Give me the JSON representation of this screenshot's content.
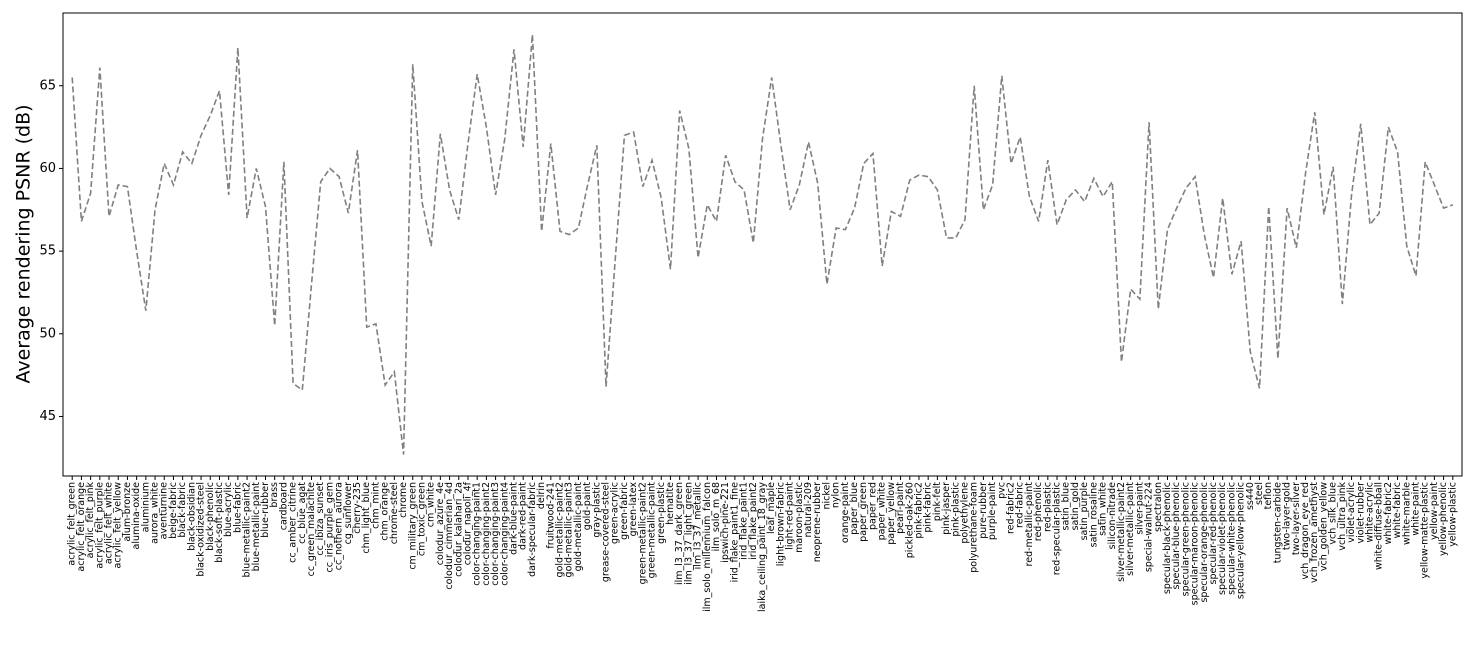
{
  "chart_data": {
    "type": "line",
    "ylabel": "Average rendering PSNR (dB)",
    "categories": [
      "acrylic_felt_green",
      "acrylic_felt_orange",
      "acrylic_felt_pink",
      "acrylic_felt_purple",
      "acrylic_felt_white",
      "acrylic_felt_yellow",
      "alum-bronze",
      "alumina-oxide",
      "aluminium",
      "aurora_white",
      "aventurnine",
      "beige-fabric",
      "black-fabric",
      "black-obsidian",
      "black-oxidized-steel",
      "black-phenolic",
      "black-soft-plastic",
      "blue-acrylic",
      "blue-fabric",
      "blue-metallic-paint2",
      "blue-metallic-paint",
      "blue-rubber",
      "brass",
      "cardboard",
      "cc_amber_citrine",
      "cc_blue_agat",
      "cc_green_malachite",
      "cc_ibiza_sunset",
      "cc_iris_purple_gem",
      "cc_nothern_aurora",
      "cg_sunflower",
      "cherry-235",
      "chm_light_blue",
      "chm_mint",
      "chm_orange",
      "chrome-steel",
      "chrome",
      "cm_military_green",
      "cm_toxic_green",
      "cm_white",
      "colodur_azure_4e",
      "colodur_cimmerian_4d",
      "colodur_kalahari_2a",
      "colodur_napoli_4f",
      "color-changing-paint1",
      "color-changing-paint2",
      "color-changing-paint3",
      "color-changing-paint4",
      "dark-blue-paint",
      "dark-red-paint",
      "dark-specular-fabric",
      "delrin",
      "fruitwood-241",
      "gold-metallic-paint2",
      "gold-metallic-paint3",
      "gold-metallic-paint",
      "gold-paint",
      "gray-plastic",
      "grease-covered-steel",
      "green-acrylic",
      "green-fabric",
      "green-latex",
      "green-metallic-paint2",
      "green-metallic-paint",
      "green-plastic",
      "hematite",
      "ilm_l3_37_dark_green",
      "ilm_l3_37_light_green",
      "ilm_l3_37_metallic",
      "ilm_solo_millennium_falcon",
      "ilm_solo_m_68",
      "ipswich-pine-221",
      "irid_flake_paint1_fine",
      "irid_flake_paint1",
      "irid_flake_paint2",
      "laika_ceiling_paint_18_gray",
      "leaf_maple",
      "light-brown-fabric",
      "light-red-paint",
      "maroon-plastic",
      "natural-209",
      "neoprene-rubber",
      "nickel",
      "nylon",
      "orange-paint",
      "paper_blue",
      "paper_green",
      "paper_red",
      "paper_white",
      "paper_yellow",
      "pearl-paint",
      "pickled-oak-260",
      "pink-fabric2",
      "pink-fabric",
      "pink-felt",
      "pink-jasper",
      "pink-plastic",
      "polyethylene",
      "polyurethane-foam",
      "pure-rubber",
      "purple-paint",
      "pvc",
      "red-fabric2",
      "red-fabric",
      "red-metallic-paint",
      "red-phenolic",
      "red-plastic",
      "red-specular-plastic",
      "satin_blue",
      "satin_gold",
      "satin_purple",
      "satin_rosaline",
      "satin_white",
      "silicon-nitrade",
      "silver-metallic-paint2",
      "silver-metallic-paint",
      "silver-paint",
      "special-walnut-224",
      "spectralon",
      "specular-black-phenolic",
      "specular-blue-phenolic",
      "specular-green-phenolic",
      "specular-maroon-phenolic",
      "specular-orange-phenolic",
      "specular-red-phenolic",
      "specular-violet-phenolic",
      "specular-white-phenolic",
      "specular-yellow-phenolic",
      "ss440",
      "steel",
      "teflon",
      "tungsten-carbide",
      "two-layer-gold",
      "two-layer-silver",
      "vch_dragon_eye_red",
      "vch_frozen_amethyst",
      "vch_golden_yellow",
      "vch_silk_blue",
      "vch_ultra_pink",
      "violet-acrylic",
      "violet-rubber",
      "white-acrylic",
      "white-diffuse-bball",
      "white-fabric2",
      "white-fabric",
      "white-marble",
      "white-paint",
      "yellow-matte-plastic",
      "yellow-paint",
      "yellow-phenolic",
      "yellow-plastic"
    ],
    "values": [
      65.5,
      56.8,
      58.5,
      66.1,
      57.1,
      59.0,
      58.9,
      55.0,
      51.4,
      57.5,
      60.3,
      59.0,
      61.0,
      60.3,
      62.0,
      63.2,
      64.7,
      58.4,
      67.3,
      57.0,
      60.0,
      57.7,
      50.5,
      60.4,
      47.0,
      46.6,
      53.0,
      59.2,
      60.0,
      59.5,
      57.3,
      61.1,
      50.4,
      50.6,
      46.9,
      47.7,
      42.7,
      66.3,
      58.0,
      55.3,
      62.1,
      58.7,
      56.9,
      61.5,
      65.7,
      62.5,
      58.4,
      61.8,
      67.2,
      61.3,
      68.1,
      56.2,
      61.5,
      56.2,
      56.0,
      56.4,
      59.0,
      61.4,
      46.8,
      54.5,
      62.0,
      62.2,
      58.9,
      60.5,
      58.2,
      53.9,
      63.5,
      61.2,
      54.6,
      57.8,
      56.8,
      60.8,
      59.2,
      58.7,
      55.5,
      61.8,
      65.5,
      61.4,
      57.5,
      59.0,
      61.6,
      59.1,
      53.0,
      56.4,
      56.3,
      57.6,
      60.3,
      60.9,
      54.1,
      57.4,
      57.1,
      59.3,
      59.6,
      59.5,
      58.7,
      55.8,
      55.8,
      56.9,
      65.0,
      57.5,
      59.0,
      65.6,
      60.3,
      61.9,
      58.3,
      56.8,
      60.5,
      56.6,
      58.1,
      58.7,
      58.0,
      59.4,
      58.3,
      59.2,
      48.3,
      52.7,
      52.1,
      62.8,
      51.5,
      56.3,
      57.6,
      58.8,
      59.5,
      56.0,
      53.4,
      58.2,
      53.6,
      55.6,
      48.9,
      46.7,
      57.7,
      48.5,
      57.6,
      55.2,
      59.7,
      63.4,
      57.2,
      60.1,
      51.8,
      58.4,
      62.7,
      56.6,
      57.3,
      62.5,
      61.0,
      55.3,
      53.5,
      60.4,
      59.0,
      57.6,
      57.8
    ],
    "color": "#808080",
    "line_style": "dashed",
    "ylim": [
      41.4,
      69.4
    ],
    "yticks": [
      45,
      50,
      55,
      60,
      65
    ]
  }
}
